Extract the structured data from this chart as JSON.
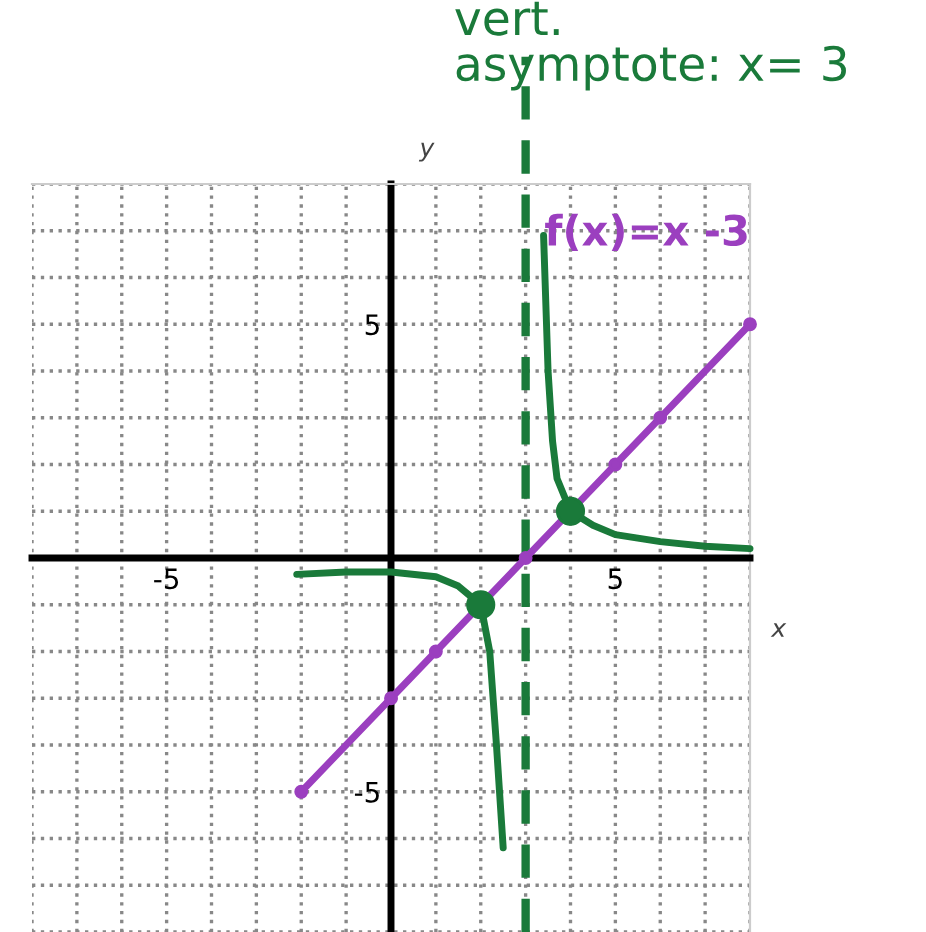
{
  "chart_data": {
    "type": "line",
    "xlabel": "x",
    "ylabel": "y",
    "xlim": [
      -8,
      8
    ],
    "ylim": [
      -8,
      8
    ],
    "xticks": [
      {
        "value": -8,
        "label": null
      },
      {
        "value": -7,
        "label": null
      },
      {
        "value": -6,
        "label": null
      },
      -5,
      {
        "value": -4,
        "label": null
      },
      {
        "value": -3,
        "label": null
      },
      {
        "value": -2,
        "label": null
      },
      {
        "value": -1,
        "label": null
      },
      {
        "value": 0,
        "label": null
      },
      {
        "value": 1,
        "label": null
      },
      {
        "value": 2,
        "label": null
      },
      {
        "value": 3,
        "label": null
      },
      {
        "value": 4,
        "label": null
      },
      5,
      {
        "value": 6,
        "label": null
      },
      {
        "value": 7,
        "label": null
      },
      {
        "value": 8,
        "label": null
      }
    ],
    "yticks": [
      {
        "value": -8,
        "label": null
      },
      {
        "value": -7,
        "label": null
      },
      {
        "value": -6,
        "label": null
      },
      -5,
      {
        "value": -4,
        "label": null
      },
      {
        "value": -3,
        "label": null
      },
      {
        "value": -2,
        "label": null
      },
      {
        "value": -1,
        "label": null
      },
      {
        "value": 0,
        "label": null
      },
      {
        "value": 1,
        "label": null
      },
      {
        "value": 2,
        "label": null
      },
      {
        "value": 3,
        "label": null
      },
      {
        "value": 4,
        "label": null
      },
      5,
      {
        "value": 6,
        "label": null
      },
      {
        "value": 7,
        "label": null
      },
      {
        "value": 8,
        "label": null
      }
    ],
    "grid": true,
    "series": [
      {
        "name": "f(x)=x -3",
        "color": "#9b3fbf",
        "marker": "circle",
        "x": [
          -2,
          0,
          1,
          3,
          5,
          6,
          8
        ],
        "values": [
          -5,
          -3,
          -2,
          0,
          2,
          3,
          5
        ]
      },
      {
        "color": "#1a7a3a",
        "marker": "none",
        "x": [
          3.4,
          3.5,
          3.6,
          3.7,
          4,
          4.5,
          5,
          6,
          7,
          8
        ],
        "values": [
          6.9,
          4,
          2.5,
          1.7,
          1,
          0.7,
          0.5,
          0.35,
          0.25,
          0.2
        ]
      },
      {
        "color": "#1a7a3a",
        "marker": "none",
        "x": [
          -2.1,
          -1,
          0,
          1,
          1.5,
          2,
          2.2,
          2.35,
          2.5
        ],
        "values": [
          -0.35,
          -0.3,
          -0.3,
          -0.4,
          -0.6,
          -1,
          -2,
          -4,
          -6.2
        ]
      },
      {
        "type": "scatter",
        "color": "#1a7a3a",
        "marker": "circle",
        "x": [
          2,
          4
        ],
        "values": [
          -1,
          1
        ]
      }
    ],
    "ref_lines": [
      {
        "axis": "x",
        "value": 3,
        "label": "vert.\nasymptote: x= 3",
        "color": "#1a7a3a",
        "line_style": "dashed"
      }
    ]
  }
}
